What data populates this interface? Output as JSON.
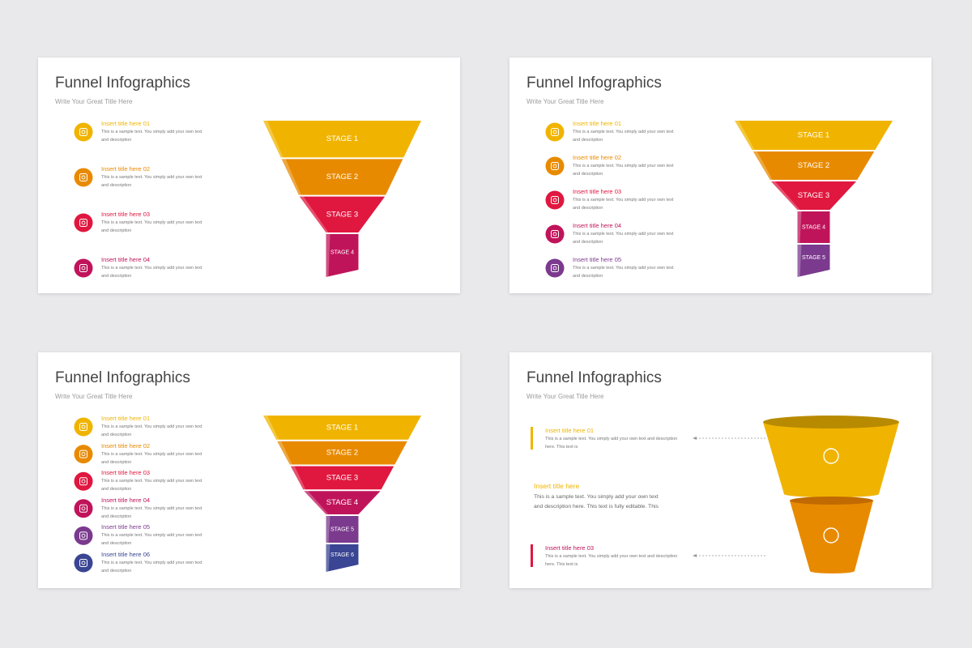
{
  "slides": [
    {
      "title": "Funnel Infographics",
      "subtitle": "Write Your Great Title Here",
      "items": [
        {
          "title": "Insert title here 01",
          "text": "This is a sample text. You simply add your own text and description"
        },
        {
          "title": "Insert title here 02",
          "text": "This is a sample text. You simply add your own text and description"
        },
        {
          "title": "Insert title here 03",
          "text": "This is a sample text. You simply add your own text and description"
        },
        {
          "title": "Insert title here 04",
          "text": "This is a sample text. You simply add your own text and description"
        }
      ],
      "stages": [
        "STAGE 1",
        "STAGE 2",
        "STAGE 3",
        "STAGE 4"
      ]
    },
    {
      "title": "Funnel Infographics",
      "subtitle": "Write Your Great Title Here",
      "items": [
        {
          "title": "Insert title here 01",
          "text": "This is a sample text. You simply add your own text and description"
        },
        {
          "title": "Insert title here 02",
          "text": "This is a sample text. You simply add your own text and description"
        },
        {
          "title": "Insert title here 03",
          "text": "This is a sample text. You simply add your own text and description"
        },
        {
          "title": "Insert title here 04",
          "text": "This is a sample text. You simply add your own text and description"
        },
        {
          "title": "Insert title here 05",
          "text": "This is a sample text. You simply add your own text and description"
        }
      ],
      "stages": [
        "STAGE 1",
        "STAGE 2",
        "STAGE 3",
        "STAGE 4",
        "STAGE 5"
      ]
    },
    {
      "title": "Funnel Infographics",
      "subtitle": "Write Your Great Title Here",
      "items": [
        {
          "title": "Insert title here 01",
          "text": "This is a sample text. You simply add your own text and description"
        },
        {
          "title": "Insert title here 02",
          "text": "This is a sample text. You simply add your own text and description"
        },
        {
          "title": "Insert title here 03",
          "text": "This is a sample text. You simply add your own text and description"
        },
        {
          "title": "Insert title here 04",
          "text": "This is a sample text. You simply add your own text and description"
        },
        {
          "title": "Insert title here 05",
          "text": "This is a sample text. You simply add your own text and description"
        },
        {
          "title": "Insert title here 06",
          "text": "This is a sample text. You simply add your own text and description"
        }
      ],
      "stages": [
        "STAGE 1",
        "STAGE 2",
        "STAGE 3",
        "STAGE 4",
        "STAGE 5",
        "STAGE 6"
      ]
    },
    {
      "title": "Funnel Infographics",
      "subtitle": "Write Your Great Title Here",
      "items": [
        {
          "title": "Insert title here 01",
          "text": "This is a sample text. You simply add your own text and description here. This text is"
        },
        {
          "title": "Insert title here",
          "text": "This is a sample text. You simply add your own text and description here. This text is fully editable.  This"
        },
        {
          "title": "Insert title here 03",
          "text": "This is a sample text. You simply add your own text and description here. This text is"
        }
      ]
    }
  ]
}
